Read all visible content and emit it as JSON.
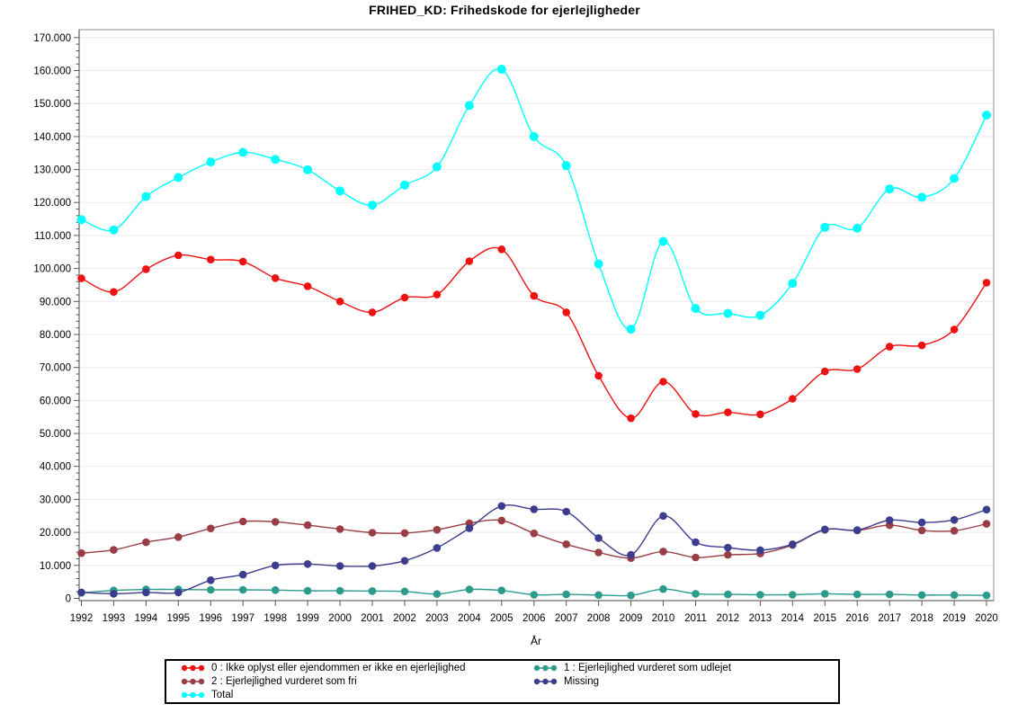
{
  "title": "FRIHED_KD: Frihedskode for ejerlejligheder",
  "chart_data": {
    "type": "line",
    "title": "FRIHED_KD: Frihedskode for ejerlejligheder",
    "xlabel": "År",
    "ylabel": "",
    "x": [
      1992,
      1993,
      1994,
      1995,
      1996,
      1997,
      1998,
      1999,
      2000,
      2001,
      2002,
      2003,
      2004,
      2005,
      2006,
      2007,
      2008,
      2009,
      2010,
      2011,
      2012,
      2013,
      2014,
      2015,
      2016,
      2017,
      2018,
      2019,
      2020
    ],
    "ylim": [
      0,
      170000
    ],
    "ytick_step": 10000,
    "yminor_step": 2000,
    "y_tick_format": "danish-thousands-dot",
    "grid": true,
    "legend_position": "bottom",
    "marker": "filled-circle",
    "line_style": "smooth",
    "series": [
      {
        "name": "0 : Ikke oplyst eller ejendommen er ikke en ejerlejlighed",
        "color": "#ee1111",
        "values": [
          97000,
          92900,
          99800,
          104000,
          102700,
          102100,
          97100,
          94600,
          90000,
          86700,
          91200,
          92100,
          102200,
          105800,
          91700,
          86700,
          67500,
          54600,
          65700,
          55900,
          56400,
          55800,
          60500,
          68800,
          69500,
          76300,
          76700,
          81500,
          95700
        ]
      },
      {
        "name": "1 : Ejerlejlighed vurderet som udlejet",
        "color": "#2d9b8c",
        "values": [
          1700,
          2400,
          2700,
          2700,
          2600,
          2600,
          2500,
          2300,
          2300,
          2200,
          2100,
          1300,
          2700,
          2400,
          1100,
          1200,
          1000,
          900,
          2800,
          1400,
          1200,
          1100,
          1100,
          1400,
          1200,
          1200,
          1000,
          1000,
          900
        ]
      },
      {
        "name": "2 : Ejerlejlighed vurderet som fri",
        "color": "#993d47",
        "values": [
          13700,
          14700,
          17000,
          18600,
          21200,
          23300,
          23200,
          22200,
          21000,
          19900,
          19800,
          20800,
          22800,
          23600,
          19700,
          16400,
          13900,
          12200,
          14200,
          12400,
          13200,
          13600,
          16200,
          20800,
          20600,
          22200,
          20600,
          20500,
          22600
        ]
      },
      {
        "name": "Missing",
        "color": "#3d3d8f",
        "values": [
          1800,
          1400,
          1800,
          1800,
          5500,
          7200,
          10000,
          10400,
          9800,
          9800,
          11400,
          15300,
          21300,
          28000,
          27000,
          26300,
          18300,
          13200,
          25000,
          17000,
          15400,
          14600,
          16400,
          20900,
          20700,
          23700,
          23000,
          23800,
          26900
        ]
      },
      {
        "name": "Total",
        "color": "#00ffff",
        "values": [
          114800,
          111700,
          121800,
          127600,
          132300,
          135200,
          133100,
          129900,
          123500,
          119200,
          125300,
          130800,
          149400,
          160400,
          140000,
          131200,
          101400,
          81600,
          108200,
          87900,
          86400,
          85800,
          95500,
          112500,
          112200,
          124100,
          121600,
          127300,
          146500
        ]
      }
    ],
    "style": {
      "grid_color": "#ebebeb",
      "frame_color": "#8c8c8c",
      "axis_color": "#444444",
      "tick_color": "#595959",
      "text_color": "#000000",
      "background": "#ffffff"
    }
  }
}
